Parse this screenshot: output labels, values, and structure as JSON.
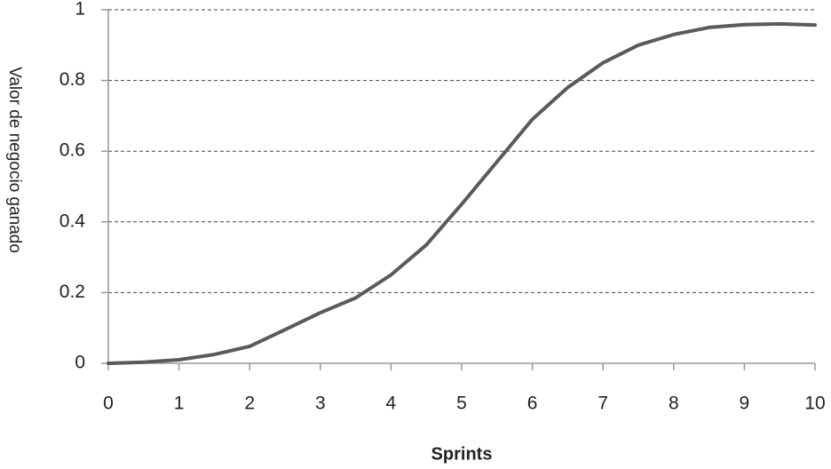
{
  "chart_data": {
    "type": "line",
    "x_label": "Sprints",
    "y_label": "Valor de negocio ganado",
    "x": [
      0,
      0.5,
      1,
      1.5,
      2,
      2.5,
      3,
      3.5,
      4,
      4.5,
      5,
      5.5,
      6,
      6.5,
      7,
      7.5,
      8,
      8.5,
      9,
      9.5,
      10
    ],
    "values": [
      0,
      0.003,
      0.01,
      0.025,
      0.048,
      0.095,
      0.143,
      0.185,
      0.25,
      0.335,
      0.45,
      0.57,
      0.69,
      0.78,
      0.85,
      0.9,
      0.93,
      0.95,
      0.958,
      0.96,
      0.957
    ],
    "color": "#5a5a5a",
    "xlim": [
      0,
      10
    ],
    "xticks": [
      0,
      1,
      2,
      3,
      4,
      5,
      6,
      7,
      8,
      9,
      10
    ],
    "ylim": [
      0,
      1
    ],
    "yticks": [
      0,
      0.2,
      0.4,
      0.6,
      0.8,
      1
    ],
    "grid": true
  }
}
